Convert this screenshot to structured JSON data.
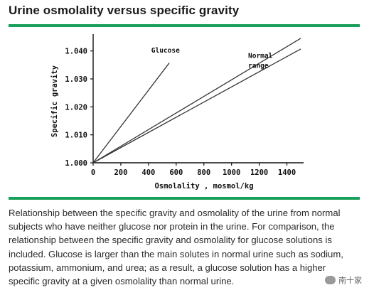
{
  "page": {
    "title": "Urine osmolality versus specific gravity",
    "caption": "Relationship between the specific gravity and osmolality of the urine from normal subjects who have neither glucose nor protein in the urine. For comparison, the relationship between the specific gravity and osmolality for glucose solutions is included. Glucose is larger than the main solutes in normal urine such as sodium, potassium, ammonium, and urea; as a result, a glucose solution has a higher specific gravity at a given osmolality than normal urine.",
    "watermark": "南十家"
  },
  "colors": {
    "accent_rule": "#1aa05a",
    "line": "#333333"
  },
  "chart_data": {
    "type": "line",
    "title": "",
    "xlabel": "Osmolality , mosmol/kg",
    "ylabel": "Specific gravity",
    "xlim": [
      0,
      1500
    ],
    "ylim": [
      1.0,
      1.045
    ],
    "x_ticks": [
      0,
      200,
      400,
      600,
      800,
      1000,
      1200,
      1400
    ],
    "y_ticks": [
      1.0,
      1.01,
      1.02,
      1.03,
      1.04
    ],
    "x_tick_labels": [
      "0",
      "200",
      "400",
      "600",
      "800",
      "1000",
      "1200",
      "1400"
    ],
    "y_tick_labels": [
      "1.000",
      "1.010",
      "1.020",
      "1.030",
      "1.040"
    ],
    "grid": false,
    "series": [
      {
        "name": "Glucose",
        "x": [
          0,
          550
        ],
        "y": [
          1.0,
          1.0357
        ]
      },
      {
        "name": "Normal range",
        "x": [
          0,
          1500
        ],
        "y": [
          1.0,
          1.0445
        ]
      },
      {
        "name": "",
        "x": [
          0,
          1500
        ],
        "y": [
          1.0,
          1.0407
        ]
      }
    ],
    "annotations": [
      {
        "text": "Glucose",
        "x": 420,
        "y": 1.0394
      },
      {
        "text": "Normal",
        "x": 1120,
        "y": 1.0375
      },
      {
        "text": "range",
        "x": 1120,
        "y": 1.034
      }
    ]
  }
}
